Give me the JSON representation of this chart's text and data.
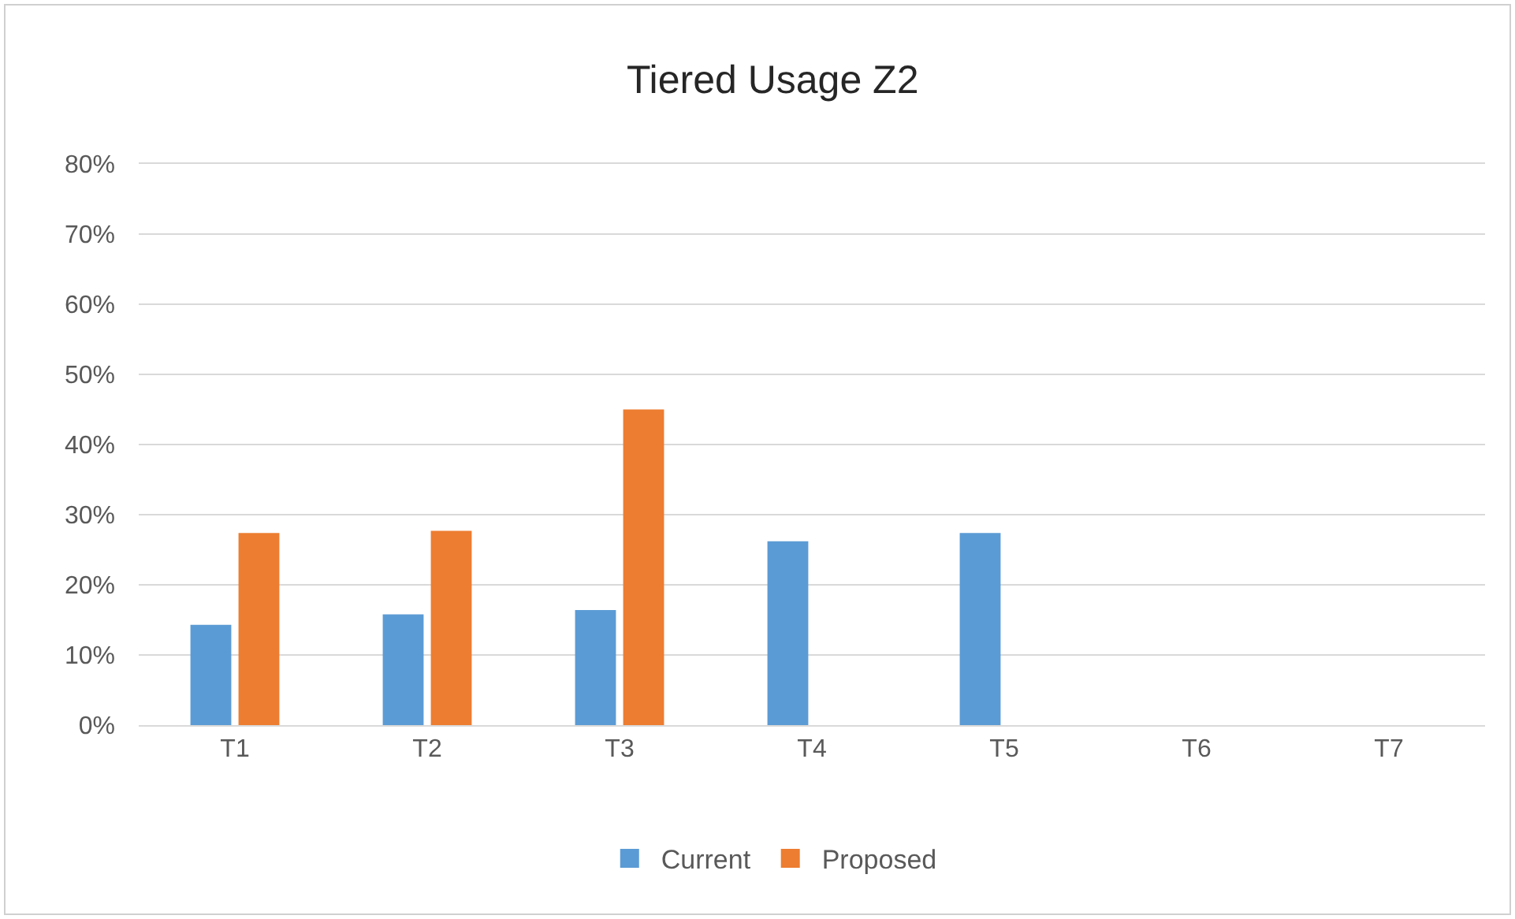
{
  "chart_data": {
    "type": "bar",
    "title": "Tiered Usage Z2",
    "categories": [
      "T1",
      "T2",
      "T3",
      "T4",
      "T5",
      "T6",
      "T7"
    ],
    "series": [
      {
        "name": "Current",
        "color": "#5b9bd5",
        "values": [
          14.3,
          15.8,
          16.4,
          26.2,
          27.4,
          null,
          null
        ]
      },
      {
        "name": "Proposed",
        "color": "#ed7d31",
        "values": [
          27.4,
          27.7,
          45.0,
          null,
          null,
          null,
          null
        ]
      }
    ],
    "ylim": [
      0,
      80
    ],
    "yticks": [
      {
        "value": 0,
        "label": "0%"
      },
      {
        "value": 10,
        "label": "10%"
      },
      {
        "value": 20,
        "label": "20%"
      },
      {
        "value": 30,
        "label": "30%"
      },
      {
        "value": 40,
        "label": "40%"
      },
      {
        "value": 50,
        "label": "50%"
      },
      {
        "value": 60,
        "label": "60%"
      },
      {
        "value": 70,
        "label": "70%"
      },
      {
        "value": 80,
        "label": "80%"
      }
    ],
    "grid": "y",
    "legend": "bottom"
  }
}
